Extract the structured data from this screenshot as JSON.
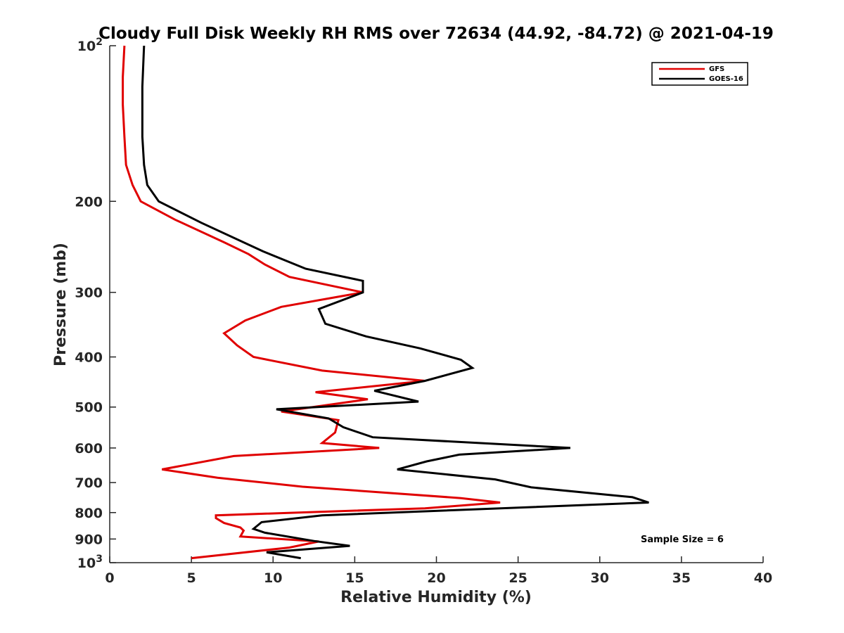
{
  "chart_data": {
    "type": "line",
    "title": "Cloudy Full Disk Weekly RH RMS over 72634 (44.92, -84.72) @ 2021-04-19",
    "xlabel": "Relative Humidity (%)",
    "ylabel": "Pressure (mb)",
    "xlim": [
      0,
      40
    ],
    "ylim": [
      100,
      1000
    ],
    "y_scale": "log",
    "y_reversed": true,
    "grid": false,
    "legend_position": "top-right",
    "x_ticks": [
      {
        "value": 0,
        "label": "0"
      },
      {
        "value": 5,
        "label": "5"
      },
      {
        "value": 10,
        "label": "10"
      },
      {
        "value": 15,
        "label": "15"
      },
      {
        "value": 20,
        "label": "20"
      },
      {
        "value": 25,
        "label": "25"
      },
      {
        "value": 30,
        "label": "30"
      },
      {
        "value": 35,
        "label": "35"
      },
      {
        "value": 40,
        "label": "40"
      }
    ],
    "y_ticks": [
      {
        "value": 100,
        "label": "10",
        "sup": "2"
      },
      {
        "value": 200,
        "label": "200",
        "sup": ""
      },
      {
        "value": 300,
        "label": "300",
        "sup": ""
      },
      {
        "value": 400,
        "label": "400",
        "sup": ""
      },
      {
        "value": 500,
        "label": "500",
        "sup": ""
      },
      {
        "value": 600,
        "label": "600",
        "sup": ""
      },
      {
        "value": 700,
        "label": "700",
        "sup": ""
      },
      {
        "value": 800,
        "label": "800",
        "sup": ""
      },
      {
        "value": 900,
        "label": "900",
        "sup": ""
      },
      {
        "value": 1000,
        "label": "10",
        "sup": "3"
      }
    ],
    "series": [
      {
        "name": "GFS",
        "color": "#e00000",
        "points": [
          [
            0.9,
            100
          ],
          [
            0.8,
            115
          ],
          [
            0.8,
            130
          ],
          [
            0.9,
            150
          ],
          [
            1.0,
            170
          ],
          [
            1.4,
            186
          ],
          [
            1.9,
            200
          ],
          [
            4.0,
            217
          ],
          [
            7.0,
            240
          ],
          [
            8.5,
            253
          ],
          [
            9.5,
            265
          ],
          [
            11.0,
            280
          ],
          [
            15.5,
            300
          ],
          [
            10.5,
            320
          ],
          [
            8.3,
            340
          ],
          [
            7.0,
            360
          ],
          [
            7.8,
            380
          ],
          [
            8.8,
            400
          ],
          [
            13.0,
            425
          ],
          [
            19.3,
            445
          ],
          [
            12.6,
            468
          ],
          [
            15.8,
            483
          ],
          [
            10.5,
            510
          ],
          [
            14.0,
            530
          ],
          [
            13.8,
            560
          ],
          [
            13.0,
            587
          ],
          [
            16.5,
            600
          ],
          [
            7.6,
            622
          ],
          [
            3.2,
            660
          ],
          [
            6.6,
            685
          ],
          [
            11.8,
            713
          ],
          [
            21.5,
            750
          ],
          [
            23.9,
            765
          ],
          [
            19.3,
            785
          ],
          [
            6.5,
            810
          ],
          [
            6.5,
            820
          ],
          [
            7.0,
            838
          ],
          [
            8.0,
            855
          ],
          [
            8.2,
            867
          ],
          [
            8.0,
            890
          ],
          [
            12.8,
            910
          ],
          [
            11.0,
            935
          ],
          [
            5.0,
            980
          ]
        ]
      },
      {
        "name": "GOES-16",
        "color": "#000000",
        "points": [
          [
            2.1,
            100
          ],
          [
            2.0,
            120
          ],
          [
            2.0,
            150
          ],
          [
            2.1,
            170
          ],
          [
            2.3,
            186
          ],
          [
            3.0,
            200
          ],
          [
            5.6,
            220
          ],
          [
            9.4,
            250
          ],
          [
            12.0,
            270
          ],
          [
            15.5,
            285
          ],
          [
            15.5,
            300
          ],
          [
            12.8,
            323
          ],
          [
            13.2,
            345
          ],
          [
            15.7,
            365
          ],
          [
            19.0,
            385
          ],
          [
            21.5,
            405
          ],
          [
            22.2,
            420
          ],
          [
            19.3,
            445
          ],
          [
            16.2,
            465
          ],
          [
            18.9,
            488
          ],
          [
            10.2,
            505
          ],
          [
            13.4,
            526
          ],
          [
            14.3,
            547
          ],
          [
            16.1,
            572
          ],
          [
            28.2,
            600
          ],
          [
            21.4,
            618
          ],
          [
            19.4,
            637
          ],
          [
            17.6,
            660
          ],
          [
            23.6,
            690
          ],
          [
            25.8,
            715
          ],
          [
            32.0,
            747
          ],
          [
            33.0,
            765
          ],
          [
            13.0,
            810
          ],
          [
            9.3,
            835
          ],
          [
            8.8,
            860
          ],
          [
            9.5,
            875
          ],
          [
            12.5,
            908
          ],
          [
            14.7,
            928
          ],
          [
            9.6,
            955
          ],
          [
            11.7,
            980
          ]
        ]
      }
    ],
    "annotations": [
      {
        "text": "Sample Size = 6"
      }
    ]
  }
}
